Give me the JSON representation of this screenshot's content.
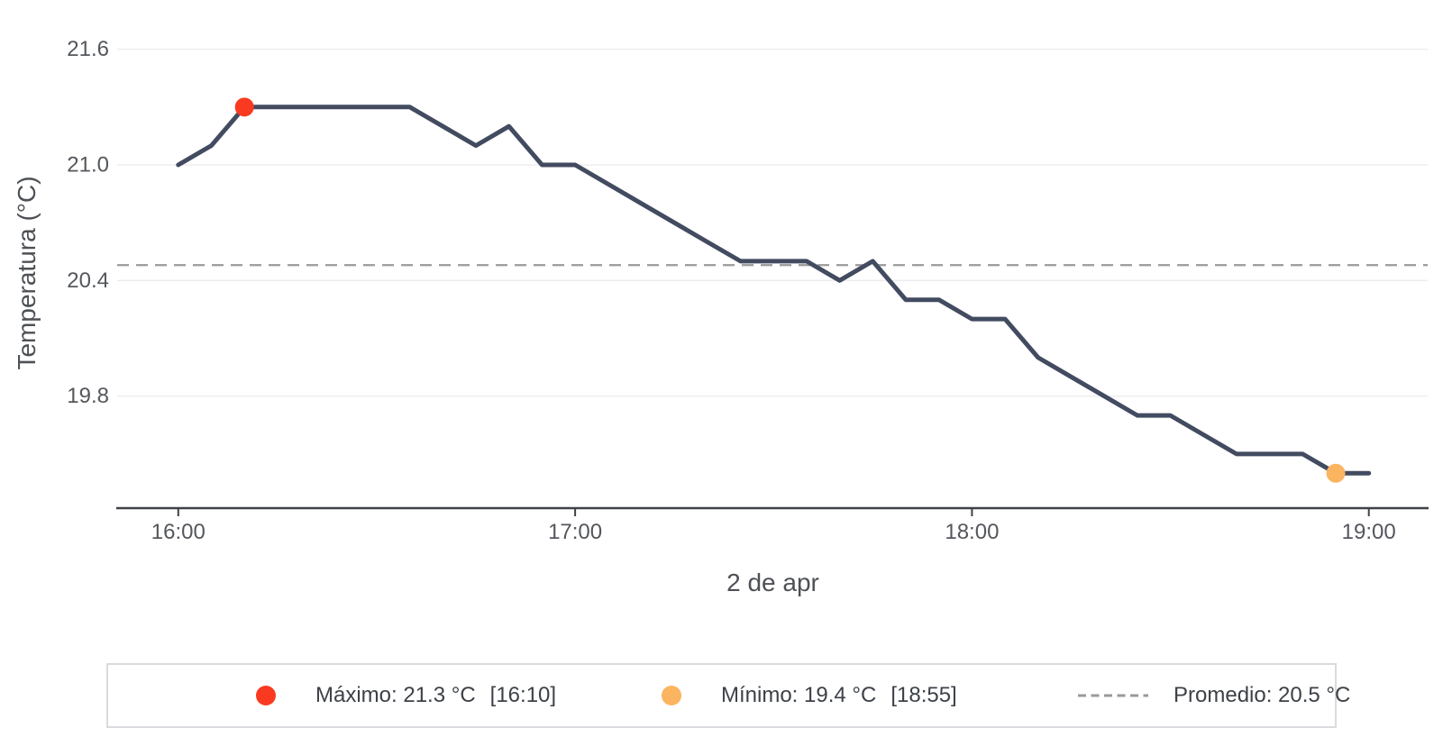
{
  "chart_data": {
    "type": "line",
    "title": "",
    "xlabel": "2 de apr",
    "ylabel": "Temperatura (°C)",
    "x": [
      "16:00",
      "16:05",
      "16:10",
      "16:15",
      "16:20",
      "16:25",
      "16:30",
      "16:35",
      "16:40",
      "16:45",
      "16:50",
      "16:55",
      "17:00",
      "17:05",
      "17:10",
      "17:15",
      "17:20",
      "17:25",
      "17:30",
      "17:35",
      "17:40",
      "17:45",
      "17:50",
      "17:55",
      "18:00",
      "18:05",
      "18:10",
      "18:15",
      "18:20",
      "18:25",
      "18:30",
      "18:35",
      "18:40",
      "18:45",
      "18:50",
      "18:55",
      "19:00"
    ],
    "series": [
      {
        "name": "Temperatura",
        "values": [
          21.0,
          21.1,
          21.3,
          21.3,
          21.3,
          21.3,
          21.3,
          21.3,
          21.2,
          21.1,
          21.2,
          21.0,
          21.0,
          20.9,
          20.8,
          20.7,
          20.6,
          20.5,
          20.5,
          20.5,
          20.4,
          20.5,
          20.3,
          20.3,
          20.2,
          20.2,
          20.0,
          19.9,
          19.8,
          19.7,
          19.7,
          19.6,
          19.5,
          19.5,
          19.5,
          19.4,
          19.4
        ]
      }
    ],
    "x_ticks": [
      "16:00",
      "17:00",
      "18:00",
      "19:00"
    ],
    "y_ticks": [
      21.6,
      21.0,
      20.4,
      19.8
    ],
    "ylim": [
      19.22,
      21.72
    ],
    "grid": "horizontal-only",
    "legend_position": "bottom",
    "average_value": 20.48,
    "max": {
      "value": 21.3,
      "time": "16:10"
    },
    "min": {
      "value": 19.4,
      "time": "18:55"
    },
    "colors": {
      "line": "#424b60",
      "max_marker": "#fa3a20",
      "min_marker": "#fbb460",
      "average_line": "#9a9a9a",
      "gridline": "#ededf0",
      "axis_line": "#3f4145",
      "tick_text": "#54575c"
    }
  },
  "legend": {
    "max_label": "Máximo: 21.3 °C",
    "max_time": "[16:10]",
    "min_label": "Mínimo: 19.4 °C",
    "min_time": "[18:55]",
    "avg_label": "Promedio: 20.5 °C"
  }
}
